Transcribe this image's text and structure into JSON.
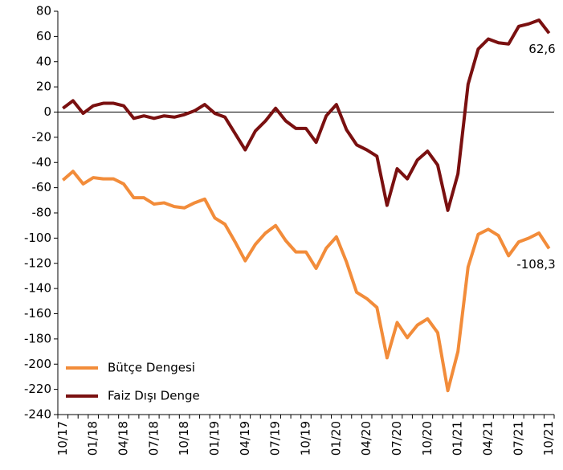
{
  "chart_data": {
    "type": "line",
    "categories": [
      "10/17",
      null,
      null,
      "01/18",
      null,
      null,
      "04/18",
      null,
      null,
      "07/18",
      null,
      null,
      "10/18",
      null,
      null,
      "01/19",
      null,
      null,
      "04/19",
      null,
      null,
      "07/19",
      null,
      null,
      "10/19",
      null,
      null,
      "01/20",
      null,
      null,
      "04/20",
      null,
      null,
      "07/20",
      null,
      null,
      "10/20",
      null,
      null,
      "01/21",
      null,
      null,
      "04/21",
      null,
      null,
      "07/21",
      null,
      null,
      "10/21"
    ],
    "series": [
      {
        "name": "Bütçe Dengesi",
        "color": "#f28c3a",
        "values": [
          -54,
          -47,
          -57,
          -52,
          -53,
          -53,
          -57,
          -68,
          -68,
          -73,
          -72,
          -75,
          -76,
          -72,
          -69,
          -84,
          -89,
          -103,
          -118,
          -105,
          -96,
          -90,
          -102,
          -111,
          -111,
          -124,
          -108,
          -99,
          -119,
          -143,
          -148,
          -155,
          -195,
          -167,
          -179,
          -169,
          -164,
          -175,
          -221,
          -190,
          -123,
          -97,
          -93,
          -98,
          -114,
          -103,
          -100,
          -96,
          -108.3
        ],
        "value_labels": [
          null,
          null,
          null,
          null,
          null,
          null,
          null,
          null,
          null,
          null,
          null,
          null,
          null,
          null,
          null,
          null,
          null,
          null,
          null,
          null,
          null,
          null,
          null,
          null,
          null,
          null,
          null,
          null,
          null,
          null,
          null,
          null,
          null,
          null,
          null,
          null,
          null,
          null,
          null,
          null,
          null,
          null,
          null,
          null,
          null,
          null,
          null,
          null,
          "-108,3"
        ]
      },
      {
        "name": "Faiz Dışı Denge",
        "color": "#7a1010",
        "values": [
          3,
          9,
          -1,
          5,
          7,
          7,
          5,
          -5,
          -3,
          -5,
          -3,
          -4,
          -2,
          1,
          6,
          -1,
          -4,
          -17,
          -30,
          -15,
          -7,
          3,
          -7,
          -13,
          -13,
          -24,
          -3,
          6,
          -14,
          -26,
          -30,
          -35,
          -74,
          -45,
          -53,
          -38,
          -31,
          -42,
          -78,
          -49,
          22,
          50,
          58,
          55,
          54,
          68,
          70,
          73,
          62.6
        ],
        "value_labels": [
          null,
          null,
          null,
          null,
          null,
          null,
          null,
          null,
          null,
          null,
          null,
          null,
          null,
          null,
          null,
          null,
          null,
          null,
          null,
          null,
          null,
          null,
          null,
          null,
          null,
          null,
          null,
          null,
          null,
          null,
          null,
          null,
          null,
          null,
          null,
          null,
          null,
          null,
          null,
          null,
          null,
          null,
          null,
          null,
          null,
          null,
          null,
          null,
          "62,6"
        ]
      }
    ],
    "ylim": [
      -240,
      80
    ],
    "yticks": [
      -240,
      -220,
      -200,
      -180,
      -160,
      -140,
      -120,
      -100,
      -80,
      -60,
      -40,
      -20,
      0,
      20,
      40,
      60,
      80
    ],
    "legend": "lower left"
  }
}
